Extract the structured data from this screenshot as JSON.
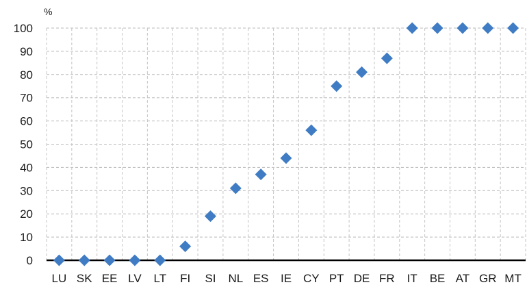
{
  "chart_data": {
    "type": "scatter",
    "title": "",
    "xlabel": "",
    "ylabel": "",
    "unit_label": "%",
    "categories": [
      "LU",
      "SK",
      "EE",
      "LV",
      "LT",
      "FI",
      "SI",
      "NL",
      "ES",
      "IE",
      "CY",
      "PT",
      "DE",
      "FR",
      "IT",
      "BE",
      "AT",
      "GR",
      "MT"
    ],
    "series": [
      {
        "values": [
          0,
          0,
          0,
          0,
          0,
          6,
          19,
          31,
          37,
          44,
          56,
          75,
          81,
          87,
          100,
          100,
          100,
          100,
          100
        ]
      }
    ],
    "ylim": [
      0,
      100
    ],
    "yticks": [
      0,
      10,
      20,
      30,
      40,
      50,
      60,
      70,
      80,
      90,
      100
    ],
    "grid": true,
    "marker": "diamond",
    "colors": {
      "marker": "#3f7cc4",
      "axis": "#000000",
      "grid": "#b8b8b8"
    }
  }
}
